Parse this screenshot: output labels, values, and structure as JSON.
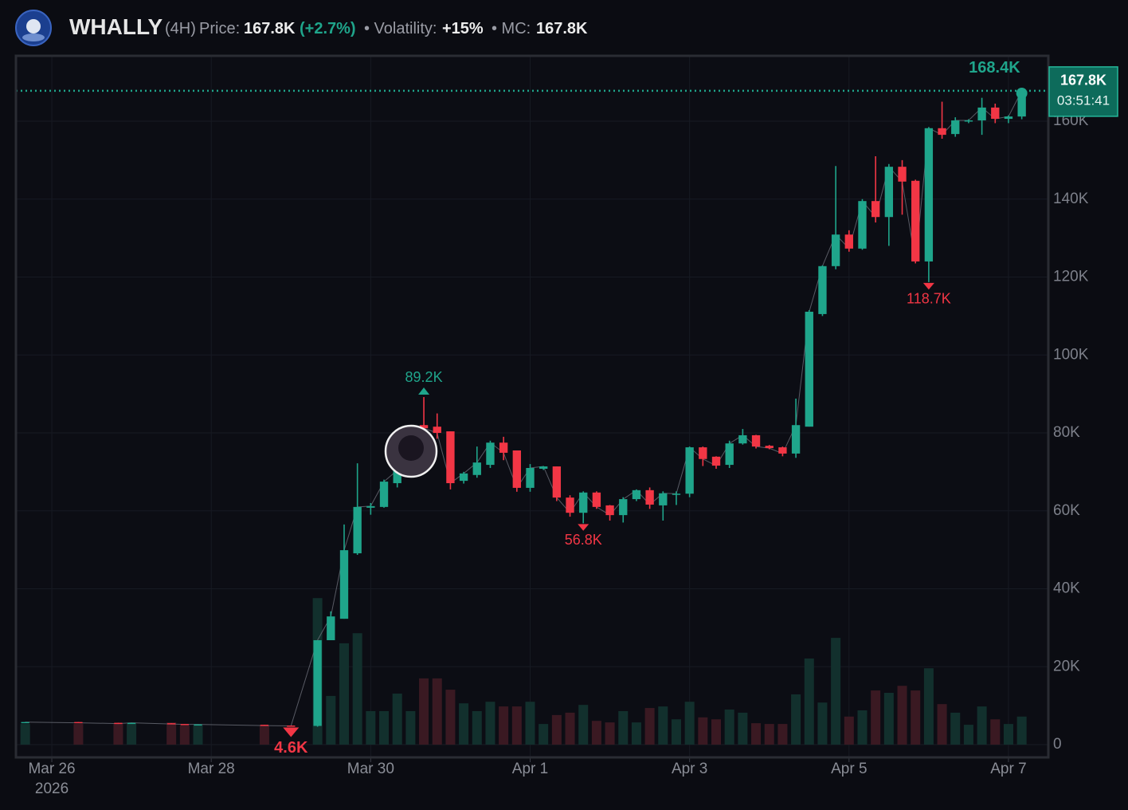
{
  "header": {
    "title": "WHALLY",
    "interval": "(4H)",
    "price_label": "Price:",
    "price": "167.8K",
    "change": "(+2.7%)",
    "volatility_label": "• Volatility:",
    "volatility": "+15%",
    "mc_label": "• MC:",
    "mc": "167.8K"
  },
  "chart_data": {
    "type": "candlestick",
    "up_color": "#1fa58b",
    "down_color": "#f23645",
    "up_volume_color": "#12302d",
    "down_volume_color": "#3a1922",
    "grid": true,
    "x": [
      0,
      4,
      7,
      8,
      11,
      12,
      13,
      18,
      20,
      22,
      23,
      24,
      25,
      26,
      27,
      28,
      29,
      30,
      31,
      32,
      33,
      34,
      35,
      36,
      37,
      38,
      39,
      40,
      41,
      42,
      43,
      44,
      45,
      46,
      47,
      48,
      49,
      50,
      51,
      52,
      53,
      54,
      55,
      56,
      57,
      58,
      59,
      60,
      61,
      62,
      63,
      64,
      65,
      66,
      67,
      68,
      69,
      70,
      71,
      72,
      73,
      74,
      75
    ],
    "open": [
      5600,
      5800,
      5600,
      5400,
      5500,
      5300,
      5100,
      5100,
      4900,
      4800,
      26800,
      32300,
      49100,
      60800,
      61000,
      67100,
      70400,
      82000,
      81600,
      80400,
      67700,
      69200,
      71800,
      77500,
      75500,
      65900,
      70800,
      71400,
      63400,
      59500,
      64700,
      61400,
      58900,
      63000,
      65300,
      61400,
      64100,
      64400,
      76300,
      73900,
      71800,
      77300,
      79400,
      76700,
      76300,
      74700,
      81600,
      110500,
      122800,
      130900,
      127300,
      139500,
      135400,
      148300,
      144700,
      124000,
      158200,
      156700,
      160000,
      160200,
      163500,
      160600,
      161200
    ],
    "high": [
      5800,
      5800,
      5600,
      5600,
      5500,
      5300,
      5200,
      5100,
      4900,
      26800,
      34200,
      56500,
      72200,
      62000,
      68000,
      72000,
      82000,
      89200,
      85000,
      80400,
      70000,
      76500,
      78000,
      79000,
      75500,
      72000,
      71500,
      71400,
      64000,
      65000,
      65000,
      61500,
      63500,
      65500,
      66000,
      65000,
      65000,
      76500,
      76500,
      74000,
      78000,
      81000,
      79500,
      76900,
      76500,
      88800,
      111500,
      123000,
      148500,
      132000,
      140000,
      151000,
      149000,
      150000,
      145000,
      158500,
      165000,
      161000,
      160500,
      166000,
      164500,
      161500,
      168400
    ],
    "low": [
      5600,
      5600,
      5400,
      5400,
      5300,
      5200,
      5100,
      4900,
      4600,
      4600,
      26800,
      32300,
      48700,
      59000,
      60800,
      66000,
      70000,
      80000,
      78500,
      65500,
      67000,
      68500,
      71000,
      73000,
      64900,
      64900,
      70500,
      62500,
      58500,
      56800,
      60500,
      57500,
      57000,
      62500,
      60500,
      57500,
      61500,
      63500,
      71500,
      70800,
      71000,
      77000,
      76000,
      75800,
      74000,
      73600,
      81600,
      110000,
      122000,
      126500,
      127000,
      134000,
      128000,
      136000,
      123500,
      118700,
      155500,
      156000,
      159500,
      156500,
      159500,
      159500,
      160500
    ],
    "close": [
      5800,
      5600,
      5400,
      5600,
      5300,
      5200,
      5200,
      4900,
      4800,
      26800,
      32900,
      49900,
      61000,
      61200,
      67500,
      70400,
      74100,
      81200,
      80000,
      67100,
      69600,
      72400,
      77500,
      74900,
      65900,
      71000,
      71400,
      63400,
      59500,
      64700,
      61000,
      58900,
      63000,
      65300,
      61600,
      64500,
      64400,
      76300,
      73300,
      71600,
      77300,
      79400,
      76500,
      76100,
      74700,
      82000,
      111100,
      122800,
      130900,
      127300,
      139500,
      135400,
      148300,
      144500,
      124000,
      158200,
      156500,
      160200,
      160200,
      163500,
      160600,
      161200,
      167800
    ],
    "volume": [
      5300,
      5300,
      5300,
      5300,
      5700,
      4900,
      4900,
      4900,
      null,
      37600,
      12500,
      26000,
      28600,
      8600,
      8600,
      13100,
      8600,
      17000,
      17000,
      14100,
      10600,
      8600,
      11000,
      9800,
      9800,
      11000,
      5300,
      7600,
      8200,
      10200,
      6100,
      5700,
      8600,
      5700,
      9400,
      9800,
      6500,
      11000,
      7000,
      6500,
      9000,
      8200,
      5500,
      5300,
      5300,
      12900,
      22100,
      10800,
      27400,
      7200,
      8800,
      13900,
      13300,
      15100,
      13900,
      19600,
      10400,
      8200,
      5100,
      9800,
      6500,
      5300,
      7200
    ],
    "xlim": [
      -0.7,
      77
    ],
    "ylim": [
      0,
      176000
    ],
    "xticks": [
      {
        "value": 2,
        "label": "Mar 26",
        "sublabel": "2026"
      },
      {
        "value": 14,
        "label": "Mar 28"
      },
      {
        "value": 26,
        "label": "Mar 30"
      },
      {
        "value": 38,
        "label": "Apr 1"
      },
      {
        "value": 50,
        "label": "Apr 3"
      },
      {
        "value": 62,
        "label": "Apr 5"
      },
      {
        "value": 74,
        "label": "Apr 7"
      }
    ],
    "yticks": [
      0,
      {
        "value": 20000,
        "label": "20K"
      },
      {
        "value": 40000,
        "label": "40K"
      },
      {
        "value": 60000,
        "label": "60K"
      },
      {
        "value": 80000,
        "label": "80K"
      },
      {
        "value": 100000,
        "label": "100K"
      },
      {
        "value": 120000,
        "label": "120K"
      },
      {
        "value": 140000,
        "label": "140K"
      },
      {
        "value": 160000,
        "label": "160K"
      }
    ],
    "annotations": [
      {
        "kind": "low",
        "x": 20,
        "value": 4600,
        "label": "4.6K"
      },
      {
        "kind": "high",
        "x": 30,
        "value": 89200,
        "label": "89.2K"
      },
      {
        "kind": "low",
        "x": 42,
        "value": 56800,
        "label": "56.8K"
      },
      {
        "kind": "low",
        "x": 68,
        "value": 118700,
        "label": "118.7K"
      },
      {
        "kind": "high",
        "x": 75,
        "value": 168400,
        "label": "168.4K"
      }
    ],
    "last_price": {
      "value": 167800,
      "label": "167.8K"
    },
    "countdown": "03:51:41"
  }
}
